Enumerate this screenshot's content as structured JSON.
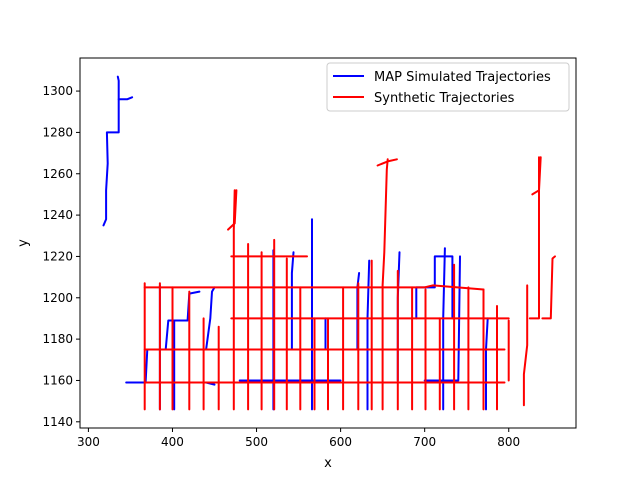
{
  "chart_data": {
    "type": "line",
    "title": "",
    "xlabel": "x",
    "ylabel": "y",
    "xlim": [
      290,
      880
    ],
    "ylim": [
      1137,
      1316
    ],
    "xticks": [
      300,
      400,
      500,
      600,
      700,
      800
    ],
    "yticks": [
      1140,
      1160,
      1180,
      1200,
      1220,
      1240,
      1260,
      1280,
      1300
    ],
    "grid": false,
    "legend_location": "upper right",
    "series": [
      {
        "name": "MAP Simulated Trajectories",
        "color": "#0000ff",
        "segments": [
          [
            [
              318,
              1235
            ],
            [
              321,
              1238
            ],
            [
              321,
              1252
            ],
            [
              323,
              1265
            ],
            [
              322,
              1280
            ],
            [
              336,
              1280
            ],
            [
              336,
              1296
            ],
            [
              340,
              1296
            ],
            [
              346,
              1296
            ],
            [
              352,
              1297
            ]
          ],
          [
            [
              336,
              1296
            ],
            [
              336,
              1305
            ],
            [
              335,
              1307
            ]
          ],
          [
            [
              345,
              1159
            ],
            [
              368,
              1159
            ],
            [
              370,
              1175
            ],
            [
              392,
              1175
            ],
            [
              395,
              1189
            ],
            [
              418,
              1189
            ],
            [
              420,
              1202
            ],
            [
              432,
              1203
            ]
          ],
          [
            [
              380,
              1159
            ],
            [
              396,
              1159
            ],
            [
              410,
              1159
            ],
            [
              440,
              1159
            ],
            [
              450,
              1158
            ]
          ],
          [
            [
              385,
              1146
            ],
            [
              385,
              1190
            ],
            [
              385,
              1206
            ]
          ],
          [
            [
              402,
              1146
            ],
            [
              402,
              1175
            ],
            [
              402,
              1189
            ]
          ],
          [
            [
              440,
              1175
            ],
            [
              445,
              1190
            ],
            [
              447,
              1203
            ],
            [
              450,
              1205
            ]
          ],
          [
            [
              520,
              1146
            ],
            [
              520,
              1175
            ],
            [
              520,
              1223
            ]
          ],
          [
            [
              542,
              1175
            ],
            [
              542,
              1212
            ],
            [
              544,
              1222
            ]
          ],
          [
            [
              566,
              1146
            ],
            [
              566,
              1190
            ],
            [
              566,
              1238
            ]
          ],
          [
            [
              560,
              1175
            ],
            [
              566,
              1175
            ],
            [
              582,
              1175
            ],
            [
              582,
              1190
            ]
          ],
          [
            [
              620,
              1175
            ],
            [
              620,
              1205
            ],
            [
              622,
              1212
            ]
          ],
          [
            [
              632,
              1146
            ],
            [
              632,
              1190
            ],
            [
              634,
              1218
            ]
          ],
          [
            [
              668,
              1160
            ],
            [
              668,
              1200
            ],
            [
              670,
              1222
            ]
          ],
          [
            [
              690,
              1190
            ],
            [
              690,
              1205
            ],
            [
              712,
              1205
            ],
            [
              712,
              1220
            ],
            [
              733,
              1220
            ],
            [
              733,
              1190
            ]
          ],
          [
            [
              722,
              1146
            ],
            [
              722,
              1190
            ],
            [
              724,
              1224
            ]
          ],
          [
            [
              700,
              1160
            ],
            [
              740,
              1160
            ],
            [
              742,
              1220
            ]
          ],
          [
            [
              773,
              1146
            ],
            [
              773,
              1175
            ],
            [
              775,
              1190
            ]
          ],
          [
            [
              600,
              1175
            ],
            [
              650,
              1175
            ],
            [
              700,
              1175
            ],
            [
              760,
              1175
            ]
          ],
          [
            [
              480,
              1160
            ],
            [
              520,
              1160
            ],
            [
              560,
              1160
            ],
            [
              600,
              1160
            ]
          ],
          [
            [
              612,
              1159
            ],
            [
              650,
              1159
            ],
            [
              690,
              1159
            ],
            [
              730,
              1159
            ]
          ]
        ]
      },
      {
        "name": "Synthetic Trajectories",
        "color": "#ff0000",
        "segments": [
          [
            [
              367,
              1175
            ],
            [
              470,
              1175
            ],
            [
              580,
              1175
            ],
            [
              700,
              1175
            ],
            [
              795,
              1175
            ]
          ],
          [
            [
              368,
              1159
            ],
            [
              480,
              1159
            ],
            [
              600,
              1159
            ],
            [
              700,
              1159
            ],
            [
              740,
              1159
            ],
            [
              795,
              1159
            ]
          ],
          [
            [
              470,
              1190
            ],
            [
              560,
              1190
            ],
            [
              680,
              1190
            ],
            [
              800,
              1190
            ]
          ],
          [
            [
              367,
              1205
            ],
            [
              400,
              1205
            ],
            [
              470,
              1205
            ],
            [
              560,
              1205
            ],
            [
              625,
              1205
            ],
            [
              700,
              1205
            ],
            [
              710,
              1206
            ],
            [
              770,
              1204
            ]
          ],
          [
            [
              470,
              1220
            ],
            [
              520,
              1220
            ],
            [
              560,
              1220
            ]
          ],
          [
            [
              367,
              1146
            ],
            [
              367,
              1207
            ]
          ],
          [
            [
              385,
              1146
            ],
            [
              385,
              1207
            ]
          ],
          [
            [
              400,
              1146
            ],
            [
              400,
              1205
            ]
          ],
          [
            [
              420,
              1146
            ],
            [
              420,
              1203
            ]
          ],
          [
            [
              437,
              1146
            ],
            [
              437,
              1190
            ]
          ],
          [
            [
              455,
              1146
            ],
            [
              455,
              1186
            ]
          ],
          [
            [
              473,
              1146
            ],
            [
              473,
              1233
            ],
            [
              474,
              1252
            ]
          ],
          [
            [
              466,
              1233
            ],
            [
              474,
              1236
            ],
            [
              476,
              1252
            ]
          ],
          [
            [
              490,
              1146
            ],
            [
              490,
              1226
            ]
          ],
          [
            [
              506,
              1146
            ],
            [
              506,
              1222
            ]
          ],
          [
            [
              521,
              1146
            ],
            [
              521,
              1228
            ]
          ],
          [
            [
              536,
              1146
            ],
            [
              536,
              1219
            ]
          ],
          [
            [
              552,
              1146
            ],
            [
              552,
              1205
            ]
          ],
          [
            [
              569,
              1146
            ],
            [
              569,
              1190
            ]
          ],
          [
            [
              585,
              1146
            ],
            [
              585,
              1190
            ]
          ],
          [
            [
              603,
              1146
            ],
            [
              603,
              1205
            ]
          ],
          [
            [
              621,
              1146
            ],
            [
              621,
              1207
            ]
          ],
          [
            [
              637,
              1146
            ],
            [
              637,
              1218
            ]
          ],
          [
            [
              650,
              1146
            ],
            [
              650,
              1206
            ],
            [
              652,
              1222
            ],
            [
              655,
              1262
            ],
            [
              656,
              1267
            ]
          ],
          [
            [
              644,
              1264
            ],
            [
              656,
              1266
            ],
            [
              667,
              1267
            ]
          ],
          [
            [
              668,
              1146
            ],
            [
              668,
              1213
            ]
          ],
          [
            [
              685,
              1146
            ],
            [
              685,
              1205
            ]
          ],
          [
            [
              701,
              1146
            ],
            [
              701,
              1204
            ]
          ],
          [
            [
              718,
              1146
            ],
            [
              718,
              1190
            ]
          ],
          [
            [
              735,
              1146
            ],
            [
              735,
              1216
            ]
          ],
          [
            [
              752,
              1146
            ],
            [
              752,
              1205
            ]
          ],
          [
            [
              770,
              1146
            ],
            [
              770,
              1204
            ]
          ],
          [
            [
              786,
              1146
            ],
            [
              786,
              1196
            ]
          ],
          [
            [
              800,
              1160
            ],
            [
              800,
              1189
            ]
          ],
          [
            [
              818,
              1148
            ],
            [
              818,
              1163
            ],
            [
              822,
              1177
            ],
            [
              822,
              1200
            ],
            [
              822,
              1206
            ]
          ],
          [
            [
              825,
              1190
            ],
            [
              836,
              1190
            ],
            [
              836,
              1232
            ],
            [
              836,
              1268
            ]
          ],
          [
            [
              828,
              1250
            ],
            [
              836,
              1252
            ],
            [
              838,
              1268
            ]
          ],
          [
            [
              840,
              1190
            ],
            [
              850,
              1190
            ],
            [
              852,
              1219
            ],
            [
              855,
              1220
            ]
          ]
        ]
      }
    ]
  }
}
